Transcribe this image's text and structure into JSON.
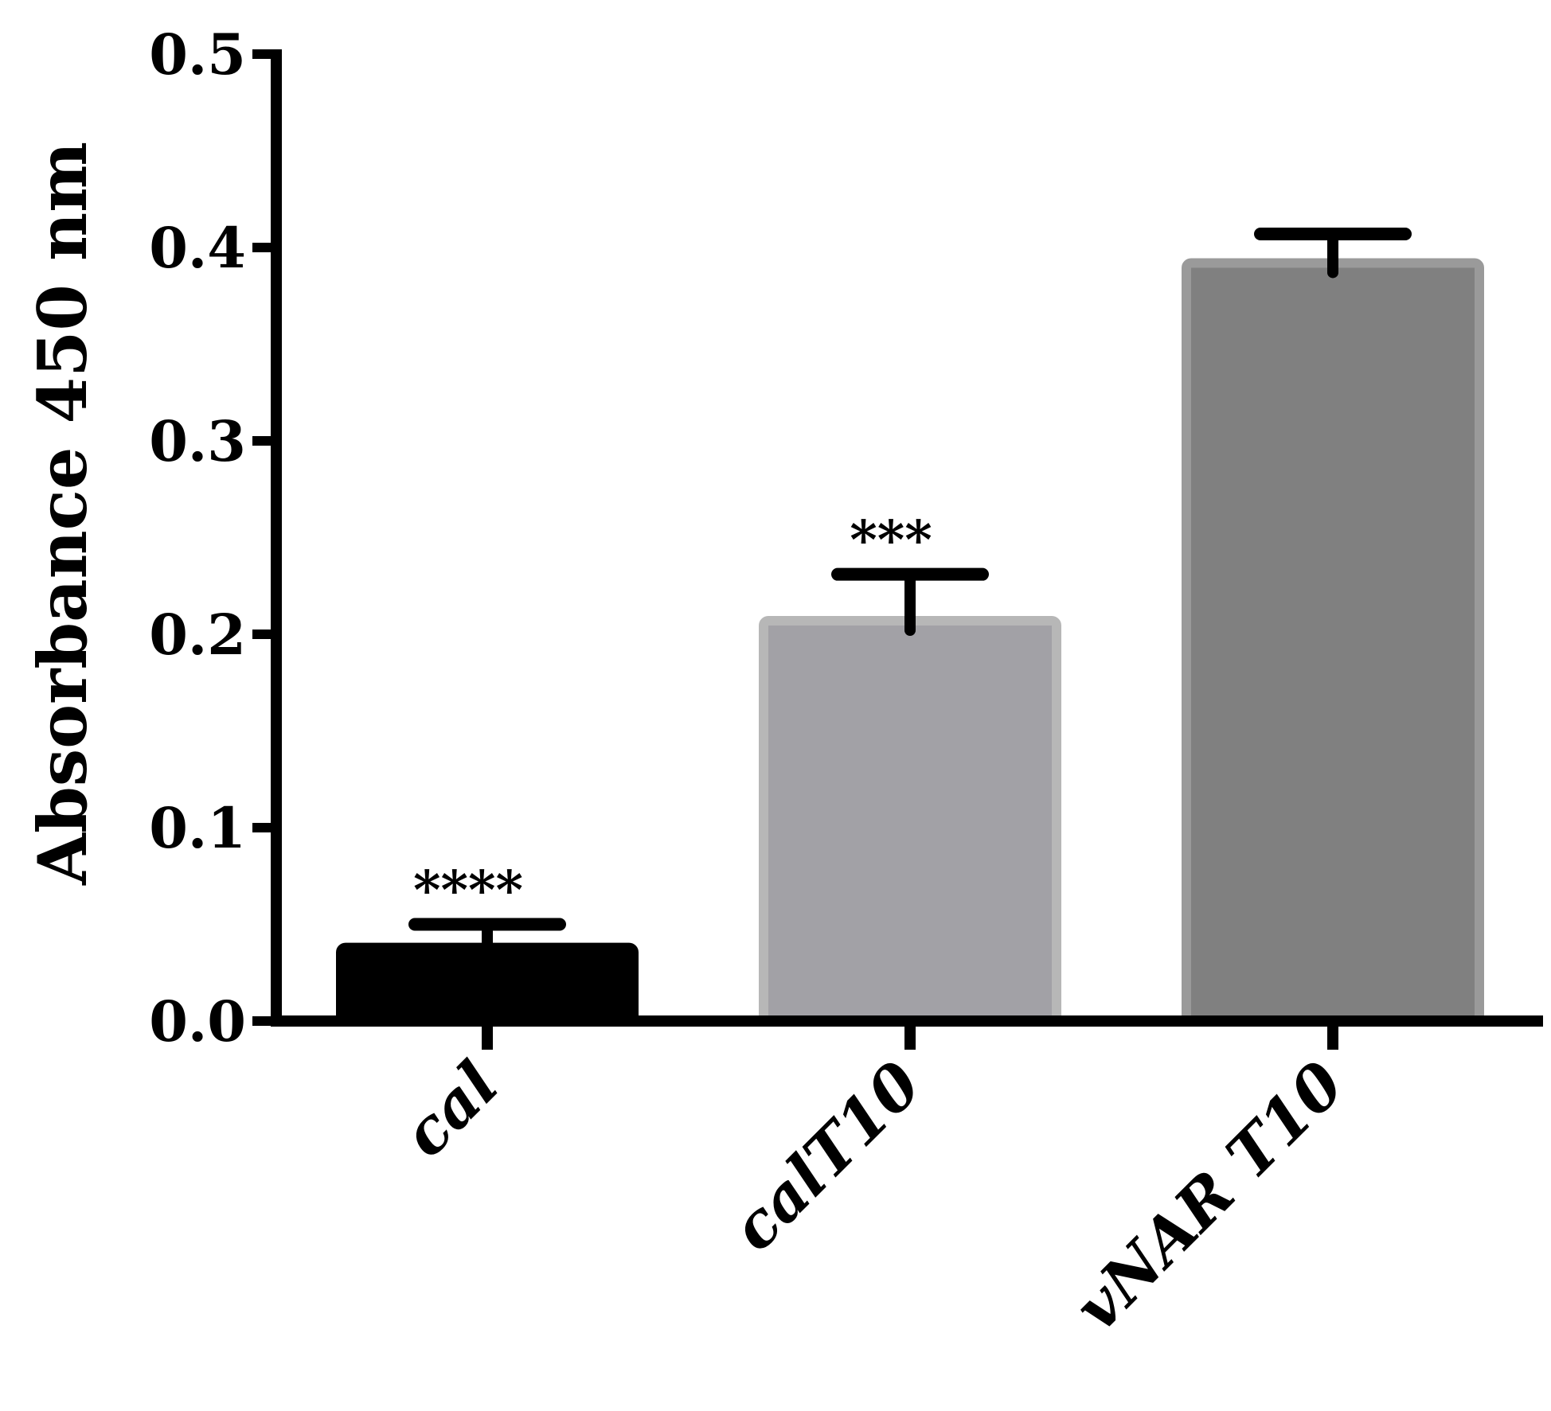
{
  "chart_data": {
    "type": "bar",
    "title": "",
    "xlabel": "",
    "ylabel": "Absorbance 450 nm",
    "ylim": [
      0,
      0.5
    ],
    "yticks": [
      "0.0",
      "0.1",
      "0.2",
      "0.3",
      "0.4",
      "0.5"
    ],
    "categories": [
      "cal",
      "calT10",
      "vNAR T10"
    ],
    "values": [
      0.038,
      0.207,
      0.392
    ],
    "errors": [
      0.012,
      0.024,
      0.015
    ],
    "annotations": [
      "****",
      "***",
      ""
    ],
    "colors": [
      "#000000",
      "#a2a1a6",
      "#808080"
    ],
    "edge_colors": [
      "#000000",
      "#b7b7b7",
      "#9a9a9a"
    ],
    "grid": false,
    "legend": "none"
  }
}
